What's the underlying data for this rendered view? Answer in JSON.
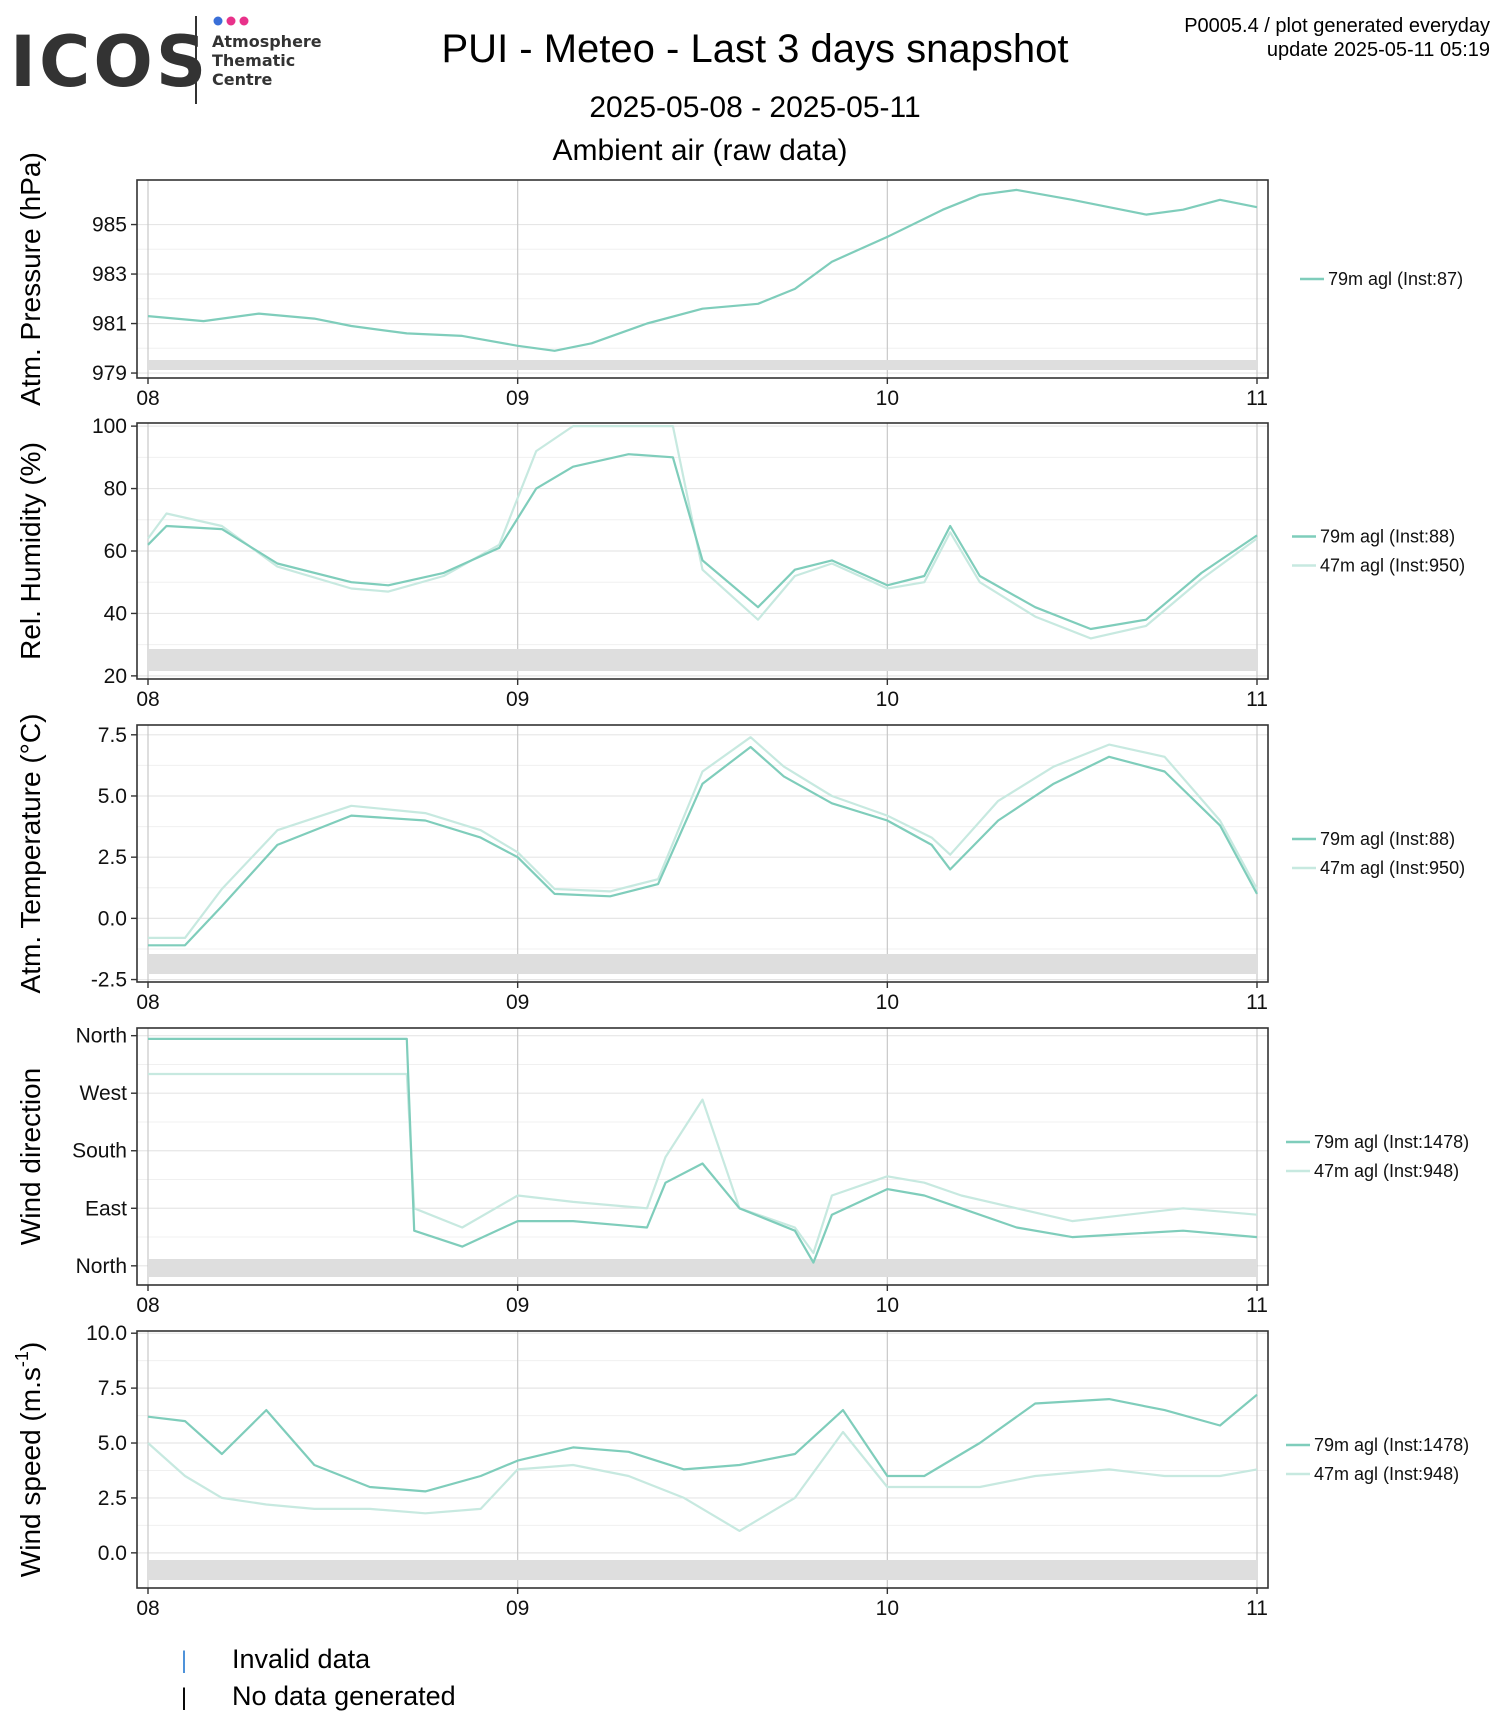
{
  "header": {
    "logo_word": "ICOS",
    "logo_sub": [
      "Atmosphere",
      "Thematic",
      "Centre"
    ],
    "logo_dot_colors": [
      "#3a6fd8",
      "#e8328a",
      "#e8328a"
    ],
    "title": "PUI - Meteo - Last 3 days snapshot",
    "date_range": "2025-05-08 - 2025-05-11",
    "subtitle": "Ambient air (raw data)",
    "meta_line1": "P0005.4 / plot generated everyday",
    "meta_line2": "update  2025-05-11 05:19"
  },
  "colors": {
    "series_79m": "#7fcdbb",
    "series_47m": "#c7e9e0",
    "gap_band": "#dedede"
  },
  "footer": {
    "legend": [
      {
        "mark": "|",
        "color": "#4a90d9",
        "label": "Invalid data"
      },
      {
        "mark": "|",
        "color": "#000000",
        "label": "No data generated"
      }
    ]
  },
  "chart_data": [
    {
      "type": "line",
      "ylabel": "Atm. Pressure (hPa)",
      "x_tick_labels": [
        "08",
        "09",
        "10",
        "11"
      ],
      "x_range": [
        8,
        11
      ],
      "ylim": [
        978.8,
        986.8
      ],
      "y_ticks": [
        979,
        981,
        983,
        985
      ],
      "y_tick_labels": [
        "979",
        "981",
        "983",
        "985"
      ],
      "legend": [
        "79m agl (Inst:87)"
      ],
      "series": [
        {
          "name": "79m agl (Inst:87)",
          "x": [
            8.0,
            8.15,
            8.3,
            8.45,
            8.55,
            8.7,
            8.85,
            9.0,
            9.1,
            9.2,
            9.35,
            9.5,
            9.65,
            9.75,
            9.85,
            10.0,
            10.15,
            10.25,
            10.35,
            10.5,
            10.6,
            10.7,
            10.8,
            10.9,
            11.0
          ],
          "y": [
            981.3,
            981.1,
            981.4,
            981.2,
            980.9,
            980.6,
            980.5,
            980.1,
            979.9,
            980.2,
            981.0,
            981.6,
            981.8,
            982.4,
            983.5,
            984.5,
            985.6,
            986.2,
            986.4,
            986.0,
            985.7,
            985.4,
            985.6,
            986.0,
            985.7
          ]
        }
      ]
    },
    {
      "type": "line",
      "ylabel": "Rel. Humidity (%)",
      "x_tick_labels": [
        "08",
        "09",
        "10",
        "11"
      ],
      "x_range": [
        8,
        11
      ],
      "ylim": [
        19,
        101
      ],
      "y_ticks": [
        20,
        40,
        60,
        80,
        100
      ],
      "y_tick_labels": [
        "20",
        "40",
        "60",
        "80",
        "100"
      ],
      "legend": [
        "79m agl (Inst:88)",
        "47m agl (Inst:950)"
      ],
      "series": [
        {
          "name": "79m agl (Inst:88)",
          "x": [
            8.0,
            8.05,
            8.2,
            8.35,
            8.55,
            8.65,
            8.8,
            8.95,
            9.05,
            9.15,
            9.3,
            9.42,
            9.5,
            9.65,
            9.75,
            9.85,
            10.0,
            10.1,
            10.17,
            10.25,
            10.4,
            10.55,
            10.7,
            10.85,
            11.0
          ],
          "y": [
            62,
            68,
            67,
            56,
            50,
            49,
            53,
            61,
            80,
            87,
            91,
            90,
            57,
            42,
            54,
            57,
            49,
            52,
            68,
            52,
            42,
            35,
            38,
            53,
            65
          ]
        },
        {
          "name": "47m agl (Inst:950)",
          "x": [
            8.0,
            8.05,
            8.2,
            8.35,
            8.55,
            8.65,
            8.8,
            8.95,
            9.05,
            9.15,
            9.3,
            9.42,
            9.5,
            9.65,
            9.75,
            9.85,
            10.0,
            10.1,
            10.17,
            10.25,
            10.4,
            10.55,
            10.7,
            10.85,
            11.0
          ],
          "y": [
            64,
            72,
            68,
            55,
            48,
            47,
            52,
            62,
            92,
            100,
            100,
            100,
            54,
            38,
            52,
            56,
            48,
            50,
            66,
            50,
            39,
            32,
            36,
            51,
            64
          ]
        }
      ]
    },
    {
      "type": "line",
      "ylabel": "Atm. Temperature (°C)",
      "x_tick_labels": [
        "08",
        "09",
        "10",
        "11"
      ],
      "x_range": [
        8,
        11
      ],
      "ylim": [
        -2.6,
        7.9
      ],
      "y_ticks": [
        -2.5,
        0.0,
        2.5,
        5.0,
        7.5
      ],
      "y_tick_labels": [
        "-2.5",
        "0.0",
        "2.5",
        "5.0",
        "7.5"
      ],
      "legend": [
        "79m agl (Inst:88)",
        "47m agl (Inst:950)"
      ],
      "series": [
        {
          "name": "79m agl (Inst:88)",
          "x": [
            8.0,
            8.1,
            8.2,
            8.35,
            8.55,
            8.75,
            8.9,
            9.0,
            9.1,
            9.25,
            9.38,
            9.5,
            9.63,
            9.72,
            9.85,
            10.0,
            10.12,
            10.17,
            10.3,
            10.45,
            10.6,
            10.75,
            10.9,
            11.0
          ],
          "y": [
            -1.1,
            -1.1,
            0.5,
            3.0,
            4.2,
            4.0,
            3.3,
            2.5,
            1.0,
            0.9,
            1.4,
            5.5,
            7.0,
            5.8,
            4.7,
            4.0,
            3.0,
            2.0,
            4.0,
            5.5,
            6.6,
            6.0,
            3.8,
            1.0
          ]
        },
        {
          "name": "47m agl (Inst:950)",
          "x": [
            8.0,
            8.1,
            8.2,
            8.35,
            8.55,
            8.75,
            8.9,
            9.0,
            9.1,
            9.25,
            9.38,
            9.5,
            9.63,
            9.72,
            9.85,
            10.0,
            10.12,
            10.17,
            10.3,
            10.45,
            10.6,
            10.75,
            10.9,
            11.0
          ],
          "y": [
            -0.8,
            -0.8,
            1.2,
            3.6,
            4.6,
            4.3,
            3.6,
            2.7,
            1.2,
            1.1,
            1.6,
            6.0,
            7.4,
            6.2,
            5.0,
            4.2,
            3.3,
            2.6,
            4.8,
            6.2,
            7.1,
            6.6,
            4.0,
            1.2
          ]
        }
      ]
    },
    {
      "type": "line",
      "ylabel": "Wind direction",
      "x_tick_labels": [
        "08",
        "09",
        "10",
        "11"
      ],
      "x_range": [
        8,
        11
      ],
      "ylim": [
        -30,
        372
      ],
      "y_ticks": [
        0,
        90,
        180,
        270,
        360
      ],
      "y_tick_labels": [
        "North",
        "East",
        "South",
        "West",
        "North"
      ],
      "legend": [
        "79m agl (Inst:1478)",
        "47m agl (Inst:948)"
      ],
      "series": [
        {
          "name": "79m agl (Inst:1478)",
          "x": [
            8.0,
            8.7,
            8.72,
            8.85,
            9.0,
            9.15,
            9.35,
            9.4,
            9.5,
            9.6,
            9.75,
            9.8,
            9.85,
            10.0,
            10.1,
            10.2,
            10.35,
            10.5,
            10.65,
            10.8,
            11.0
          ],
          "y": [
            355,
            355,
            55,
            30,
            70,
            70,
            60,
            130,
            160,
            90,
            55,
            5,
            80,
            120,
            110,
            90,
            60,
            45,
            50,
            55,
            45
          ]
        },
        {
          "name": "47m agl (Inst:948)",
          "x": [
            8.0,
            8.7,
            8.72,
            8.85,
            9.0,
            9.15,
            9.35,
            9.4,
            9.5,
            9.6,
            9.75,
            9.8,
            9.85,
            10.0,
            10.1,
            10.2,
            10.35,
            10.5,
            10.65,
            10.8,
            11.0
          ],
          "y": [
            300,
            300,
            90,
            60,
            110,
            100,
            90,
            170,
            260,
            90,
            60,
            20,
            110,
            140,
            130,
            110,
            90,
            70,
            80,
            90,
            80
          ]
        }
      ]
    },
    {
      "type": "line",
      "ylabel": "Wind speed (m.s",
      "ylabel_sup": "-1",
      "ylabel_end": ")",
      "x_tick_labels": [
        "08",
        "09",
        "10",
        "11"
      ],
      "x_range": [
        8,
        11
      ],
      "ylim": [
        -1.6,
        10.1
      ],
      "y_ticks": [
        0.0,
        2.5,
        5.0,
        7.5,
        10.0
      ],
      "y_tick_labels": [
        "0.0",
        "2.5",
        "5.0",
        "7.5",
        "10.0"
      ],
      "legend": [
        "79m agl (Inst:1478)",
        "47m agl (Inst:948)"
      ],
      "series": [
        {
          "name": "79m agl (Inst:1478)",
          "x": [
            8.0,
            8.1,
            8.2,
            8.32,
            8.45,
            8.6,
            8.75,
            8.9,
            9.0,
            9.15,
            9.3,
            9.45,
            9.6,
            9.75,
            9.88,
            10.0,
            10.1,
            10.25,
            10.4,
            10.6,
            10.75,
            10.9,
            11.0
          ],
          "y": [
            6.2,
            6.0,
            4.5,
            6.5,
            4.0,
            3.0,
            2.8,
            3.5,
            4.2,
            4.8,
            4.6,
            3.8,
            4.0,
            4.5,
            6.5,
            3.5,
            3.5,
            5.0,
            6.8,
            7.0,
            6.5,
            5.8,
            7.2
          ]
        },
        {
          "name": "47m agl (Inst:948)",
          "x": [
            8.0,
            8.1,
            8.2,
            8.32,
            8.45,
            8.6,
            8.75,
            8.9,
            9.0,
            9.15,
            9.3,
            9.45,
            9.6,
            9.75,
            9.88,
            10.0,
            10.1,
            10.25,
            10.4,
            10.6,
            10.75,
            10.9,
            11.0
          ],
          "y": [
            5.0,
            3.5,
            2.5,
            2.2,
            2.0,
            2.0,
            1.8,
            2.0,
            3.8,
            4.0,
            3.5,
            2.5,
            1.0,
            2.5,
            5.5,
            3.0,
            3.0,
            3.0,
            3.5,
            3.8,
            3.5,
            3.5,
            3.8
          ]
        }
      ]
    }
  ]
}
